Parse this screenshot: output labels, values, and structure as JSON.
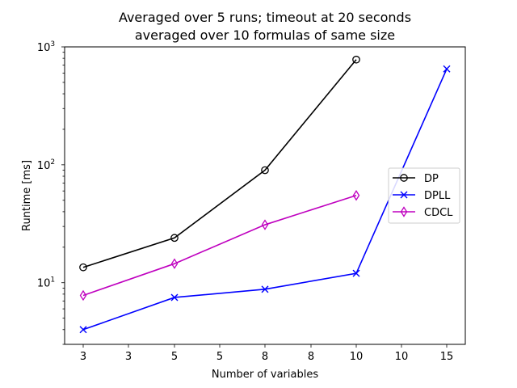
{
  "chart_data": {
    "type": "line",
    "title_line1": "Averaged over 5 runs; timeout at 20 seconds",
    "title_line2": "averaged over 10 formulas of same size",
    "xlabel": "Number of variables",
    "ylabel": "Runtime [ms]",
    "y_scale": "log",
    "ylim": [
      3.0,
      1000
    ],
    "x_tick_labels": [
      "3",
      "3",
      "5",
      "5",
      "8",
      "8",
      "10",
      "10",
      "15"
    ],
    "y_tick_labels": [
      {
        "base": "10",
        "exp": "1",
        "value": 10
      },
      {
        "base": "10",
        "exp": "2",
        "value": 100
      },
      {
        "base": "10",
        "exp": "3",
        "value": 1000
      }
    ],
    "legend_position": "center-right",
    "series": [
      {
        "name": "DP",
        "color": "#000000",
        "marker": "circle",
        "points": [
          {
            "x": 3,
            "y": 13.5
          },
          {
            "x": 5,
            "y": 24
          },
          {
            "x": 8,
            "y": 90
          },
          {
            "x": 10,
            "y": 780
          }
        ]
      },
      {
        "name": "DPLL",
        "color": "#0000ff",
        "marker": "x",
        "points": [
          {
            "x": 3,
            "y": 4.0
          },
          {
            "x": 5,
            "y": 7.5
          },
          {
            "x": 8,
            "y": 8.8
          },
          {
            "x": 10,
            "y": 12
          },
          {
            "x": 15,
            "y": 650
          }
        ]
      },
      {
        "name": "CDCL",
        "color": "#bf00bf",
        "marker": "diamond",
        "points": [
          {
            "x": 3,
            "y": 7.8
          },
          {
            "x": 5,
            "y": 14.5
          },
          {
            "x": 8,
            "y": 31
          },
          {
            "x": 10,
            "y": 55
          }
        ]
      }
    ]
  }
}
